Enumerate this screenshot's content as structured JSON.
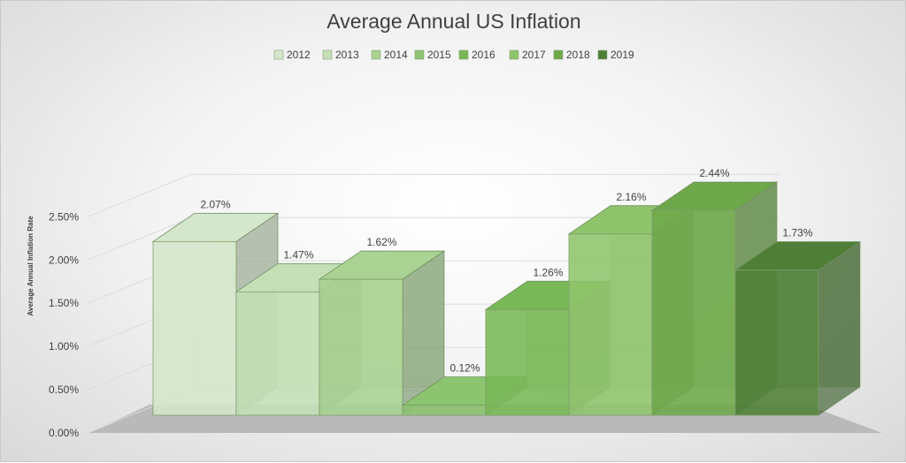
{
  "chart_data": {
    "type": "bar",
    "title": "Average Annual US Inflation",
    "ylabel": "Average Annual Inflation Rate",
    "ylim": [
      0,
      0.025
    ],
    "yticks": [
      "0.00%",
      "0.50%",
      "1.00%",
      "1.50%",
      "2.00%",
      "2.50%"
    ],
    "legend_position": "top",
    "series": [
      {
        "name": "2012",
        "value": 0.0207,
        "label": "2.07%",
        "color": "#d4e6cb"
      },
      {
        "name": "2013",
        "value": 0.0147,
        "label": "1.47%",
        "color": "#c4dfb5"
      },
      {
        "name": "2014",
        "value": 0.0162,
        "label": "1.62%",
        "color": "#a9d293"
      },
      {
        "name": "2015",
        "value": 0.0012,
        "label": "0.12%",
        "color": "#8cc46f"
      },
      {
        "name": "2016",
        "value": 0.0126,
        "label": "1.26%",
        "color": "#79b856"
      },
      {
        "name": "2017",
        "value": 0.0216,
        "label": "2.16%",
        "color": "#8fc46c"
      },
      {
        "name": "2018",
        "value": 0.0244,
        "label": "2.44%",
        "color": "#6ea84a"
      },
      {
        "name": "2019",
        "value": 0.0173,
        "label": "1.73%",
        "color": "#4f7f37"
      }
    ]
  }
}
